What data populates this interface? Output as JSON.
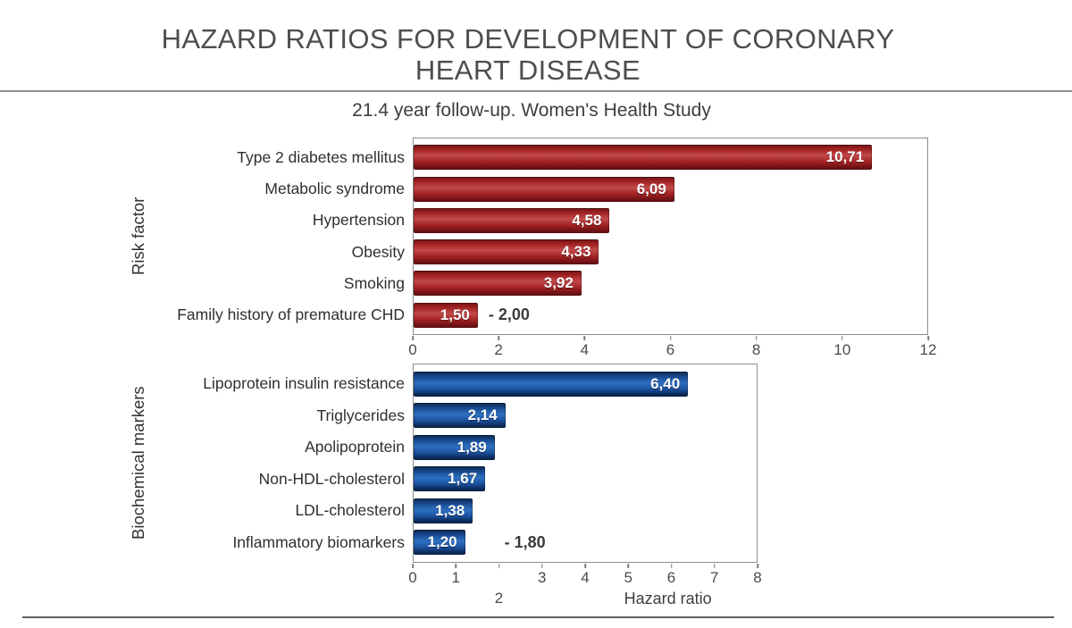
{
  "page": {
    "title_line1": "HAZARD RATIOS FOR DEVELOPMENT OF CORONARY",
    "title_line2": "HEART DISEASE",
    "subtitle": "21.4 year follow-up. Women's Health Study"
  },
  "colors": {
    "risk_bar": "#A82627",
    "biomarker_bar": "#1D55A2",
    "title_text": "#4D4D4D",
    "axis_text": "#4A4A4A"
  },
  "chart_data": [
    {
      "type": "bar",
      "orientation": "horizontal",
      "group_label": "Risk factor",
      "categories": [
        "Type 2 diabetes mellitus",
        "Metabolic syndrome",
        "Hypertension",
        "Obesity",
        "Smoking",
        "Family history of premature CHD"
      ],
      "values": [
        10.71,
        6.09,
        4.58,
        4.33,
        3.92,
        1.5
      ],
      "value_labels": [
        "10,71",
        "6,09",
        "4,58",
        "4,33",
        "3,92",
        "1,50"
      ],
      "extra_labels": [
        "",
        "",
        "",
        "",
        "",
        "- 2,00"
      ],
      "xlim": [
        0,
        12
      ],
      "xticks": [
        {
          "label": "0",
          "u": 0
        },
        {
          "label": "2",
          "u": 2
        },
        {
          "label": "4",
          "u": 4
        },
        {
          "label": "6",
          "u": 6
        },
        {
          "label": "8",
          "u": 8
        },
        {
          "label": "10",
          "u": 10
        },
        {
          "label": "12",
          "u": 12
        }
      ],
      "xlabel": "",
      "bar_color": "#A82627",
      "grid": false,
      "legend": false
    },
    {
      "type": "bar",
      "orientation": "horizontal",
      "group_label": "Biochemical markers",
      "categories": [
        "Lipoprotein insulin resistance",
        "Triglycerides",
        "Apolipoprotein",
        "Non-HDL-cholesterol",
        "LDL-cholesterol",
        "Inflammatory biomarkers"
      ],
      "values": [
        6.4,
        2.14,
        1.89,
        1.67,
        1.38,
        1.2
      ],
      "value_labels": [
        "6,40",
        "2,14",
        "1,89",
        "1,67",
        "1,38",
        "1,20"
      ],
      "extra_labels": [
        "",
        "",
        "",
        "",
        "",
        "- 1,80"
      ],
      "xlim": [
        0,
        8
      ],
      "xticks": [
        {
          "label": "0",
          "u": 0
        },
        {
          "label": "1",
          "u": 1
        },
        {
          "label": "3",
          "u": 3
        },
        {
          "label": "4",
          "u": 4
        },
        {
          "label": "5",
          "u": 5
        },
        {
          "label": "6",
          "u": 6
        },
        {
          "label": "7",
          "u": 7
        },
        {
          "label": "8",
          "u": 8
        }
      ],
      "dropped_tick": {
        "label": "2",
        "u": 2
      },
      "xlabel": "Hazard ratio",
      "bar_color": "#1D55A2",
      "grid": false,
      "legend": false
    }
  ]
}
